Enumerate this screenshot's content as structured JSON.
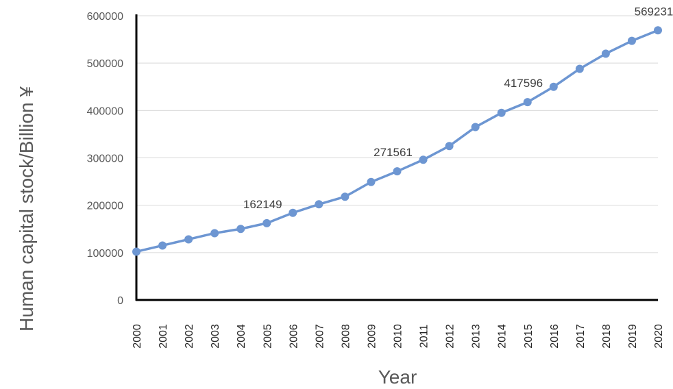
{
  "chart_data": {
    "type": "line",
    "xlabel": "Year",
    "ylabel": "Human capital stock/Billion ¥",
    "ylim": [
      0,
      600000
    ],
    "yticks": [
      "0",
      "100000",
      "200000",
      "300000",
      "400000",
      "500000",
      "600000"
    ],
    "grid": true,
    "legend": "none",
    "series_color": "#6d96d2",
    "categories": [
      "2000",
      "2001",
      "2002",
      "2003",
      "2004",
      "2005",
      "2006",
      "2007",
      "2008",
      "2009",
      "2010",
      "2011",
      "2012",
      "2013",
      "2014",
      "2015",
      "2016",
      "2017",
      "2018",
      "2019",
      "2020"
    ],
    "series": [
      {
        "values": [
          102000,
          115000,
          128000,
          141000,
          150000,
          162149,
          184000,
          202000,
          218000,
          249000,
          271561,
          296000,
          325000,
          365000,
          395000,
          417596,
          450000,
          488000,
          520000,
          547000,
          569231
        ]
      }
    ],
    "data_labels": [
      {
        "category": "2005",
        "text": "162149"
      },
      {
        "category": "2010",
        "text": "271561"
      },
      {
        "category": "2015",
        "text": "417596"
      },
      {
        "category": "2020",
        "text": "569231"
      }
    ]
  }
}
